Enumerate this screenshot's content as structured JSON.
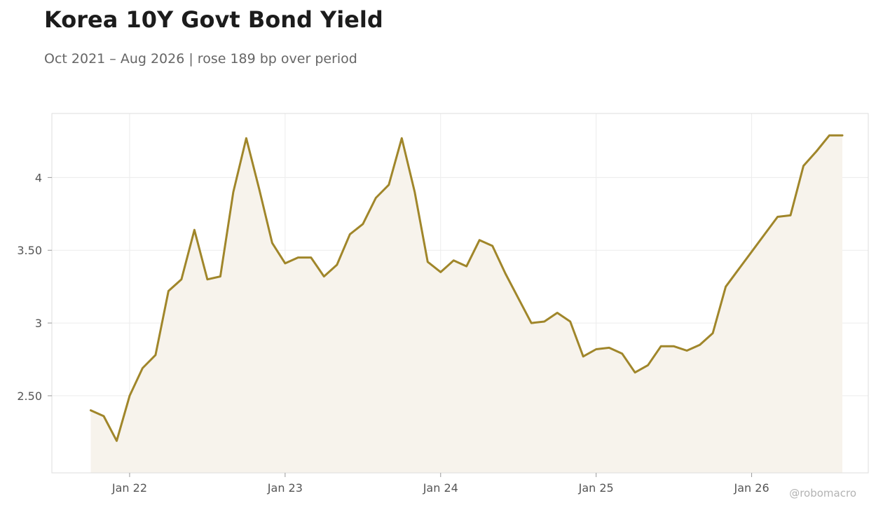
{
  "header": {
    "title": "Korea 10Y Govt Bond Yield",
    "subtitle": "Oct 2021 – Aug 2026 | rose 189 bp over period"
  },
  "footer": {
    "credit": "@robomacro"
  },
  "colors": {
    "line": "#a0862a",
    "fill": "#f7f3ec",
    "grid": "#ececec",
    "frame": "#dddddd"
  },
  "chart_data": {
    "type": "area",
    "title": "Korea 10Y Govt Bond Yield",
    "subtitle": "Oct 2021 – Aug 2026 | rose 189 bp over period",
    "xlabel": "",
    "ylabel": "",
    "x_ticks": [
      {
        "label": "Jan 22",
        "date": "2022-01"
      },
      {
        "label": "Jan 23",
        "date": "2023-01"
      },
      {
        "label": "Jan 24",
        "date": "2024-01"
      },
      {
        "label": "Jan 25",
        "date": "2025-01"
      },
      {
        "label": "Jan 26",
        "date": "2026-01"
      }
    ],
    "y_ticks": [
      {
        "label": "2.50",
        "value": 2.5
      },
      {
        "label": "3",
        "value": 3.0
      },
      {
        "label": "3.50",
        "value": 3.5
      },
      {
        "label": "4",
        "value": 4.0
      }
    ],
    "xlim": [
      "2021-07",
      "2026-10"
    ],
    "ylim": [
      1.97,
      4.44
    ],
    "grid": true,
    "legend": "none",
    "series": [
      {
        "x": [
          "2021-10",
          "2021-11",
          "2021-12",
          "2022-01",
          "2022-02",
          "2022-03",
          "2022-04",
          "2022-05",
          "2022-06",
          "2022-07",
          "2022-08",
          "2022-09",
          "2022-10",
          "2022-11",
          "2022-12",
          "2023-01",
          "2023-02",
          "2023-03",
          "2023-04",
          "2023-05",
          "2023-06",
          "2023-07",
          "2023-08",
          "2023-09",
          "2023-10",
          "2023-11",
          "2023-12",
          "2024-01",
          "2024-02",
          "2024-03",
          "2024-04",
          "2024-05",
          "2024-06",
          "2024-07",
          "2024-08",
          "2024-09",
          "2024-10",
          "2024-11",
          "2024-12",
          "2025-01",
          "2025-02",
          "2025-03",
          "2025-04",
          "2025-05",
          "2025-06",
          "2025-07",
          "2025-08",
          "2025-09",
          "2025-10",
          "2025-11",
          "2025-12",
          "2026-01",
          "2026-02",
          "2026-03",
          "2026-04",
          "2026-05",
          "2026-06",
          "2026-07",
          "2026-08"
        ],
        "values": [
          2.4,
          2.36,
          2.19,
          2.5,
          2.69,
          2.78,
          3.22,
          3.3,
          3.64,
          3.3,
          3.32,
          3.9,
          4.27,
          3.92,
          3.55,
          3.41,
          3.45,
          3.45,
          3.32,
          3.4,
          3.61,
          3.68,
          3.86,
          3.95,
          4.27,
          3.9,
          3.42,
          3.35,
          3.43,
          3.39,
          3.57,
          3.53,
          3.34,
          3.17,
          3.0,
          3.01,
          3.07,
          3.01,
          2.77,
          2.82,
          2.83,
          2.79,
          2.66,
          2.71,
          2.84,
          2.84,
          2.81,
          2.85,
          2.93,
          3.25,
          3.37,
          3.49,
          3.61,
          3.73,
          3.74,
          4.08,
          4.18,
          4.29,
          4.29
        ]
      }
    ]
  }
}
